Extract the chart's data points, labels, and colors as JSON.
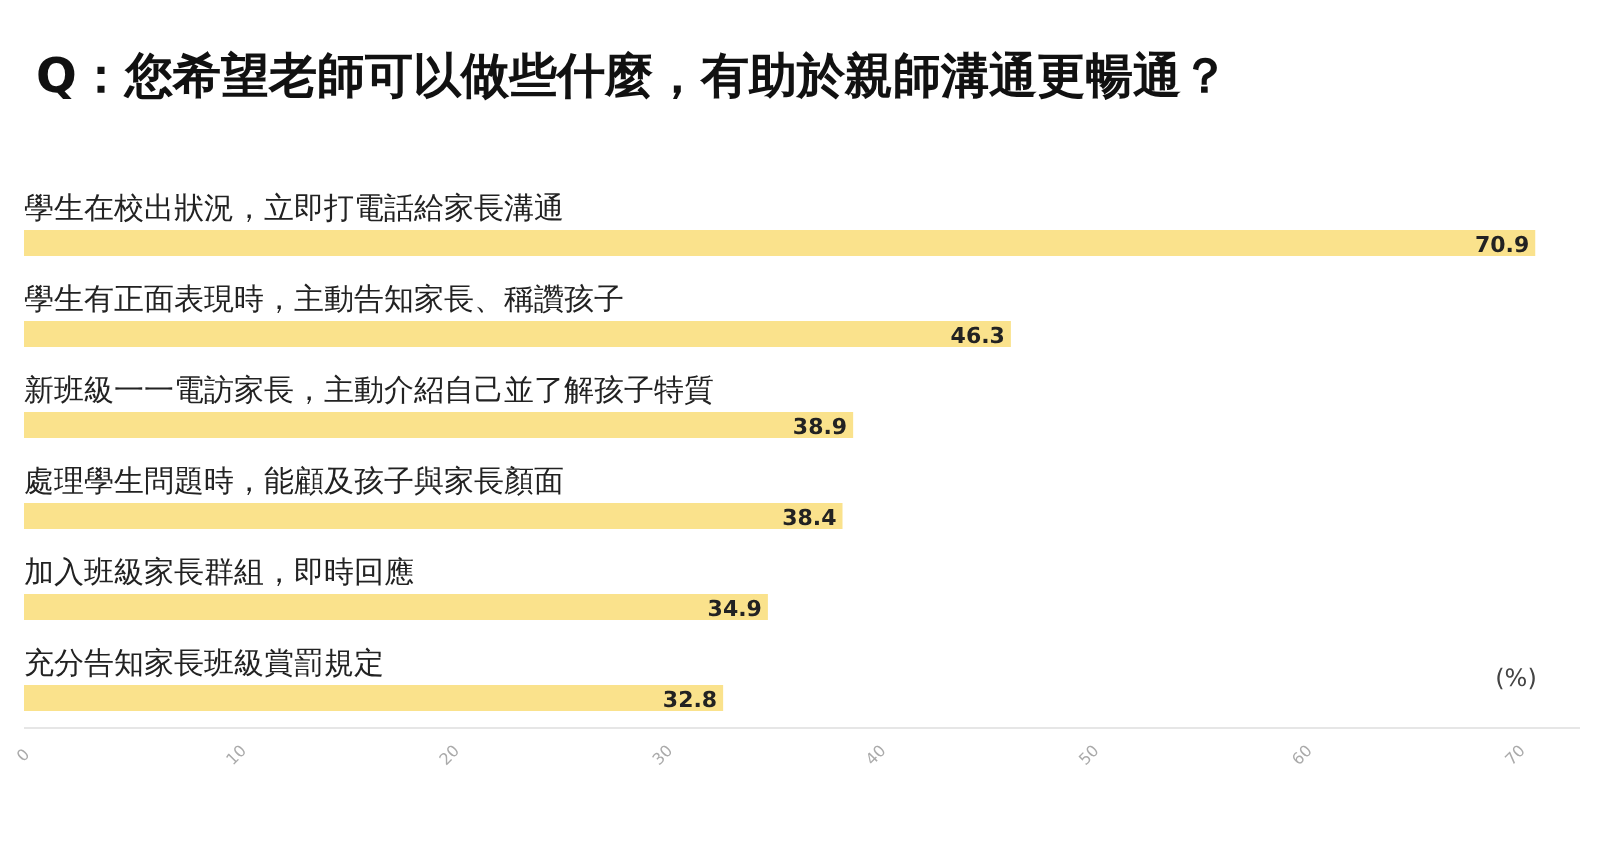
{
  "chart_data": {
    "type": "bar",
    "orientation": "horizontal",
    "title": "Q：您希望老師可以做些什麼，有助於親師溝通更暢通？",
    "categories": [
      "學生在校出狀況，立即打電話給家長溝通",
      "學生有正面表現時，主動告知家長、稱讚孩子",
      "新班級一一電訪家長，主動介紹自己並了解孩子特質",
      "處理學生問題時，能顧及孩子與家長顏面",
      "加入班級家長群組，即時回應",
      "充分告知家長班級賞罰規定"
    ],
    "values": [
      70.9,
      46.3,
      38.9,
      38.4,
      34.9,
      32.8
    ],
    "color": "#fae28c",
    "data_labels": true,
    "xlim": [
      0,
      73
    ],
    "xticks": [
      0,
      10,
      20,
      30,
      40,
      50,
      60,
      70
    ],
    "annotations": [
      "(%)"
    ]
  }
}
